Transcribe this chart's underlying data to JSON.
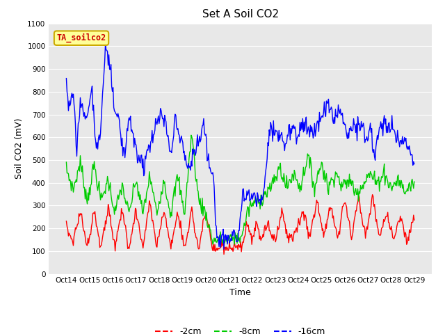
{
  "title": "Set A Soil CO2",
  "xlabel": "Time",
  "ylabel": "Soil CO2 (mV)",
  "legend_label": "TA_soilco2",
  "series_labels": [
    "-2cm",
    "-8cm",
    "-16cm"
  ],
  "series_colors": [
    "#ff0000",
    "#00cc00",
    "#0000ff"
  ],
  "ylim": [
    0,
    1100
  ],
  "yticks": [
    0,
    100,
    200,
    300,
    400,
    500,
    600,
    700,
    800,
    900,
    1000,
    1100
  ],
  "xtick_labels": [
    "Oct 14",
    "Oct 15",
    "Oct 16",
    "Oct 17",
    "Oct 18",
    "Oct 19",
    "Oct 20",
    "Oct 21",
    "Oct 22",
    "Oct 23",
    "Oct 24",
    "Oct 25",
    "Oct 26",
    "Oct 27",
    "Oct 28",
    "Oct 29"
  ],
  "fig_bg_color": "#ffffff",
  "plot_bg_color": "#e8e8e8",
  "legend_box_facecolor": "#ffff99",
  "legend_box_edgecolor": "#ccaa00",
  "legend_text_color": "#cc0000",
  "grid_color": "#ffffff",
  "title_fontsize": 11,
  "axis_fontsize": 9,
  "tick_fontsize": 7.5,
  "legend_fontsize": 9,
  "linewidth": 1.0,
  "n_points": 500
}
